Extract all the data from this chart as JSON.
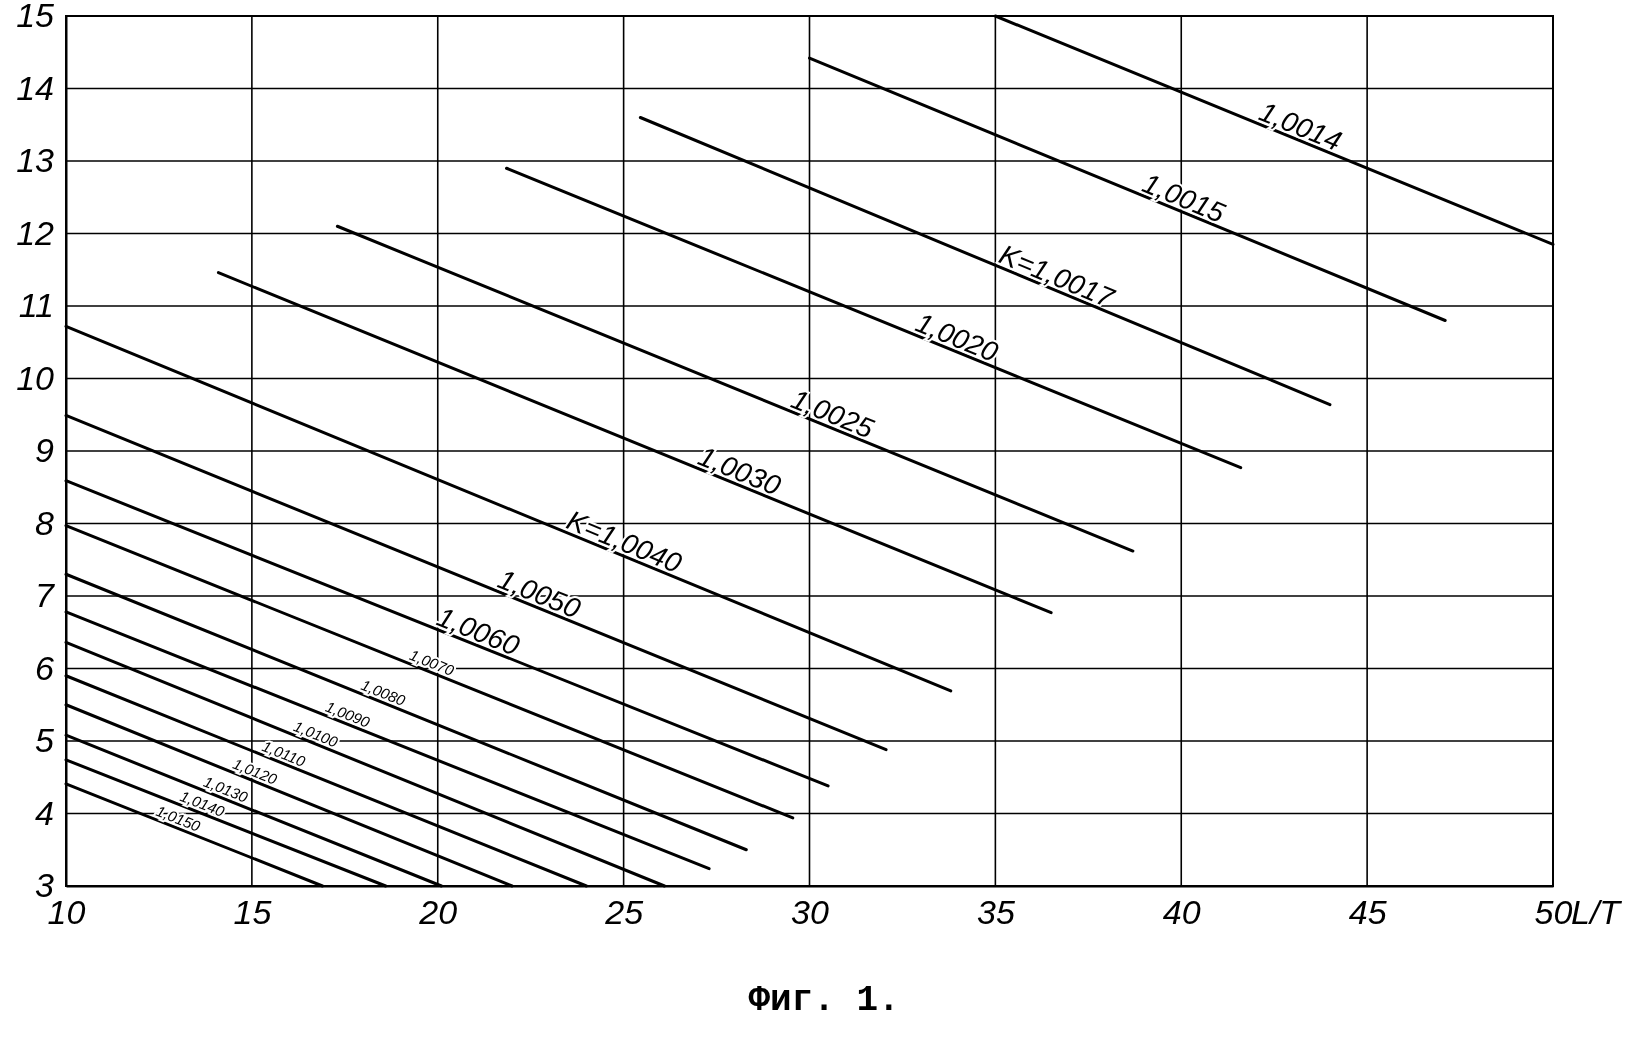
{
  "chart_data": {
    "type": "line",
    "title": "Фиг. 1.",
    "xlabel": "L/T",
    "xlim": [
      10,
      50
    ],
    "xticks": [
      10,
      15,
      20,
      25,
      30,
      35,
      40,
      45,
      50
    ],
    "ylim": [
      3,
      15
    ],
    "yticks": [
      3,
      4,
      5,
      6,
      7,
      8,
      9,
      10,
      11,
      12,
      13,
      14,
      15
    ],
    "grid": true,
    "marker": "none",
    "line_style": "solid",
    "series": [
      {
        "name": "1,0014",
        "color": "#000000",
        "x": [
          35,
          50
        ],
        "values": [
          15,
          11.85
        ]
      },
      {
        "name": "1,0015",
        "color": "#000000",
        "x": [
          30,
          47.1
        ],
        "values": [
          14.42,
          10.8
        ]
      },
      {
        "name": "K=1,0017",
        "color": "#000000",
        "x": [
          25.45,
          44
        ],
        "values": [
          13.6,
          9.64
        ]
      },
      {
        "name": "1,0020",
        "color": "#000000",
        "x": [
          21.85,
          41.6
        ],
        "values": [
          12.9,
          8.77
        ]
      },
      {
        "name": "1,0025",
        "color": "#000000",
        "x": [
          17.3,
          38.7
        ],
        "values": [
          12.1,
          7.62
        ]
      },
      {
        "name": "1,0030",
        "color": "#000000",
        "x": [
          14.1,
          36.5
        ],
        "values": [
          11.46,
          6.77
        ]
      },
      {
        "name": "K=1,0040",
        "color": "#000000",
        "x": [
          10,
          33.8
        ],
        "values": [
          10.72,
          5.69
        ]
      },
      {
        "name": "1,0050",
        "color": "#000000",
        "x": [
          10,
          32.06
        ],
        "values": [
          9.49,
          4.88
        ]
      },
      {
        "name": "1,0060",
        "color": "#000000",
        "x": [
          10,
          30.5
        ],
        "values": [
          8.59,
          4.38
        ]
      },
      {
        "name": "1,0070",
        "color": "#000000",
        "x": [
          10,
          29.55
        ],
        "values": [
          7.97,
          3.94
        ]
      },
      {
        "name": "1,0080",
        "color": "#000000",
        "x": [
          10,
          28.3
        ],
        "values": [
          7.3,
          3.5
        ]
      },
      {
        "name": "1,0090",
        "color": "#000000",
        "x": [
          10,
          27.3
        ],
        "values": [
          6.78,
          3.24
        ]
      },
      {
        "name": "1,0100",
        "color": "#000000",
        "x": [
          10,
          26.1
        ],
        "values": [
          6.36,
          3
        ]
      },
      {
        "name": "1,0110",
        "color": "#000000",
        "x": [
          10,
          24
        ],
        "values": [
          5.9,
          3
        ]
      },
      {
        "name": "1,0120",
        "color": "#000000",
        "x": [
          10,
          22
        ],
        "values": [
          5.5,
          3
        ]
      },
      {
        "name": "1,0130",
        "color": "#000000",
        "x": [
          10,
          20.1
        ],
        "values": [
          5.08,
          3
        ]
      },
      {
        "name": "1,0140",
        "color": "#000000",
        "x": [
          10,
          18.6
        ],
        "values": [
          4.74,
          3
        ]
      },
      {
        "name": "1,0150",
        "color": "#000000",
        "x": [
          10,
          16.9
        ],
        "values": [
          4.41,
          3
        ]
      }
    ]
  }
}
